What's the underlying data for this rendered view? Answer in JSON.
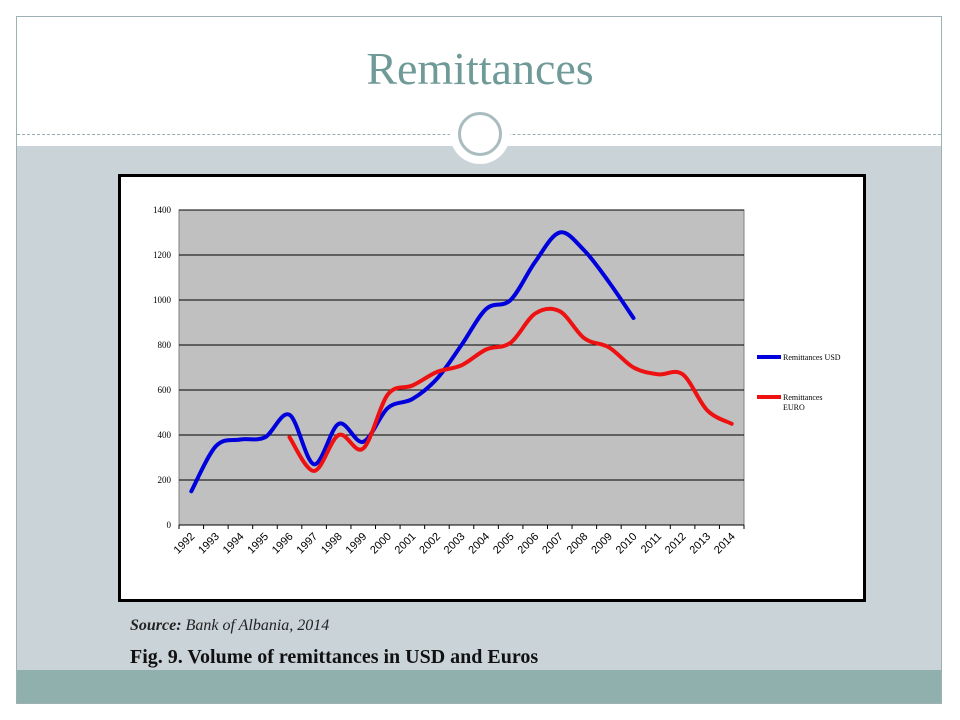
{
  "slide": {
    "title": "Remittances",
    "source_label": "Source:",
    "source_text": "Bank of Albania, 2014",
    "caption": "Fig. 9. Volume of remittances in USD and Euros"
  },
  "chart_data": {
    "type": "line",
    "title": "",
    "xlabel": "",
    "ylabel": "",
    "ylim": [
      0,
      1400
    ],
    "yticks": [
      0,
      200,
      400,
      600,
      800,
      1000,
      1200,
      1400
    ],
    "grid": true,
    "legend_position": "right",
    "categories": [
      "1992",
      "1993",
      "1994",
      "1995",
      "1996",
      "1997",
      "1998",
      "1999",
      "2000",
      "2001",
      "2002",
      "2003",
      "2004",
      "2005",
      "2006",
      "2007",
      "2008",
      "2009",
      "2010",
      "2011",
      "2012",
      "2013",
      "2014"
    ],
    "series": [
      {
        "name": "Remittances USD",
        "color": "#0000dd",
        "values": [
          150,
          350,
          380,
          390,
          490,
          270,
          450,
          370,
          520,
          560,
          650,
          800,
          960,
          1000,
          1170,
          1300,
          1220,
          1080,
          920,
          null,
          null,
          null,
          null
        ]
      },
      {
        "name": "Remittances EURO",
        "color": "#ee1111",
        "values": [
          null,
          null,
          null,
          null,
          390,
          240,
          400,
          340,
          580,
          620,
          680,
          710,
          780,
          810,
          940,
          950,
          830,
          790,
          700,
          670,
          670,
          510,
          450
        ]
      }
    ]
  }
}
